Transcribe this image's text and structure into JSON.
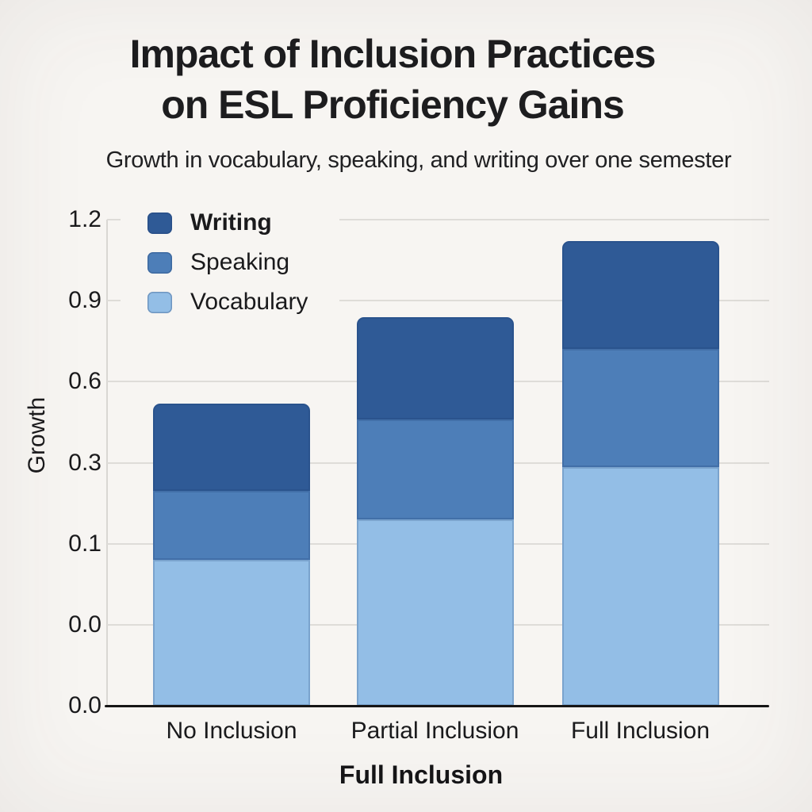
{
  "page": {
    "background_color": "#f7f5f2",
    "text_color": "#1b1b1d"
  },
  "chart_data": {
    "type": "bar",
    "stacked": true,
    "title": "Impact of Inclusion Practices on ESL Proficiency Gains",
    "title_lines": [
      "Impact of Inclusion Practices",
      "on ESL Proficiency Gains"
    ],
    "subtitle": "Growth in vocabulary, speaking, and writing over one semester",
    "xlabel": "Full Inclusion",
    "ylabel": "Growth",
    "categories": [
      "No Inclusion",
      "Partial Inclusion",
      "Full Inclusion"
    ],
    "series": [
      {
        "name": "Vocabulary",
        "color": "#93bee6",
        "values": [
          0.08,
          0.16,
          0.29
        ]
      },
      {
        "name": "Speaking",
        "color": "#4d7eb8",
        "values": [
          0.15,
          0.3,
          0.43
        ]
      },
      {
        "name": "Writing",
        "color": "#2f5a96",
        "values": [
          0.29,
          0.38,
          0.4
        ]
      }
    ],
    "stack_order_bottom_to_top": [
      "Vocabulary",
      "Speaking",
      "Writing"
    ],
    "stack_totals": [
      0.52,
      0.84,
      1.12
    ],
    "y_ticks": [
      {
        "label": "0.0",
        "value": 0.0
      },
      {
        "label": "0.0",
        "value": 0.0
      },
      {
        "label": "0.1",
        "value": 0.1
      },
      {
        "label": "0.3",
        "value": 0.3
      },
      {
        "label": "0.6",
        "value": 0.6
      },
      {
        "label": "0.9",
        "value": 0.9
      },
      {
        "label": "1.2",
        "value": 1.2
      }
    ],
    "axis_note": "ticks equally spaced; value-to-position follows tick labels (non-linear near zero)",
    "grid": true,
    "legend": {
      "position": "upper left",
      "entries": [
        {
          "name": "Writing",
          "bold": true
        },
        {
          "name": "Speaking",
          "bold": false
        },
        {
          "name": "Vocabulary",
          "bold": false
        }
      ]
    }
  }
}
